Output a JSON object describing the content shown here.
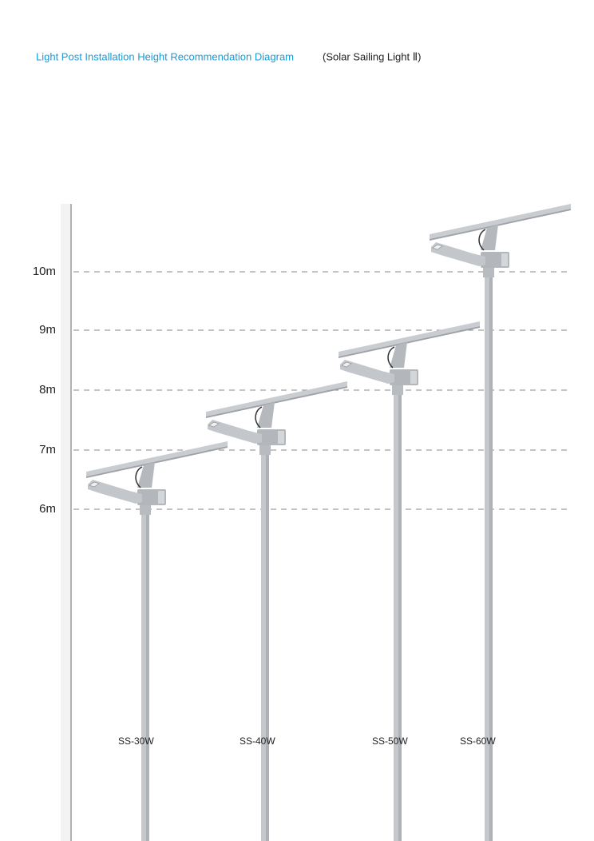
{
  "title": {
    "main": "Light Post Installation Height Recommendation Diagram",
    "sub": "(Solar Sailing Light  Ⅱ)"
  },
  "heights": [
    "10m",
    "9m",
    "8m",
    "7m",
    "6m"
  ],
  "products": [
    "SS-30W",
    "SS-40W",
    "SS-50W",
    "SS-60W"
  ]
}
